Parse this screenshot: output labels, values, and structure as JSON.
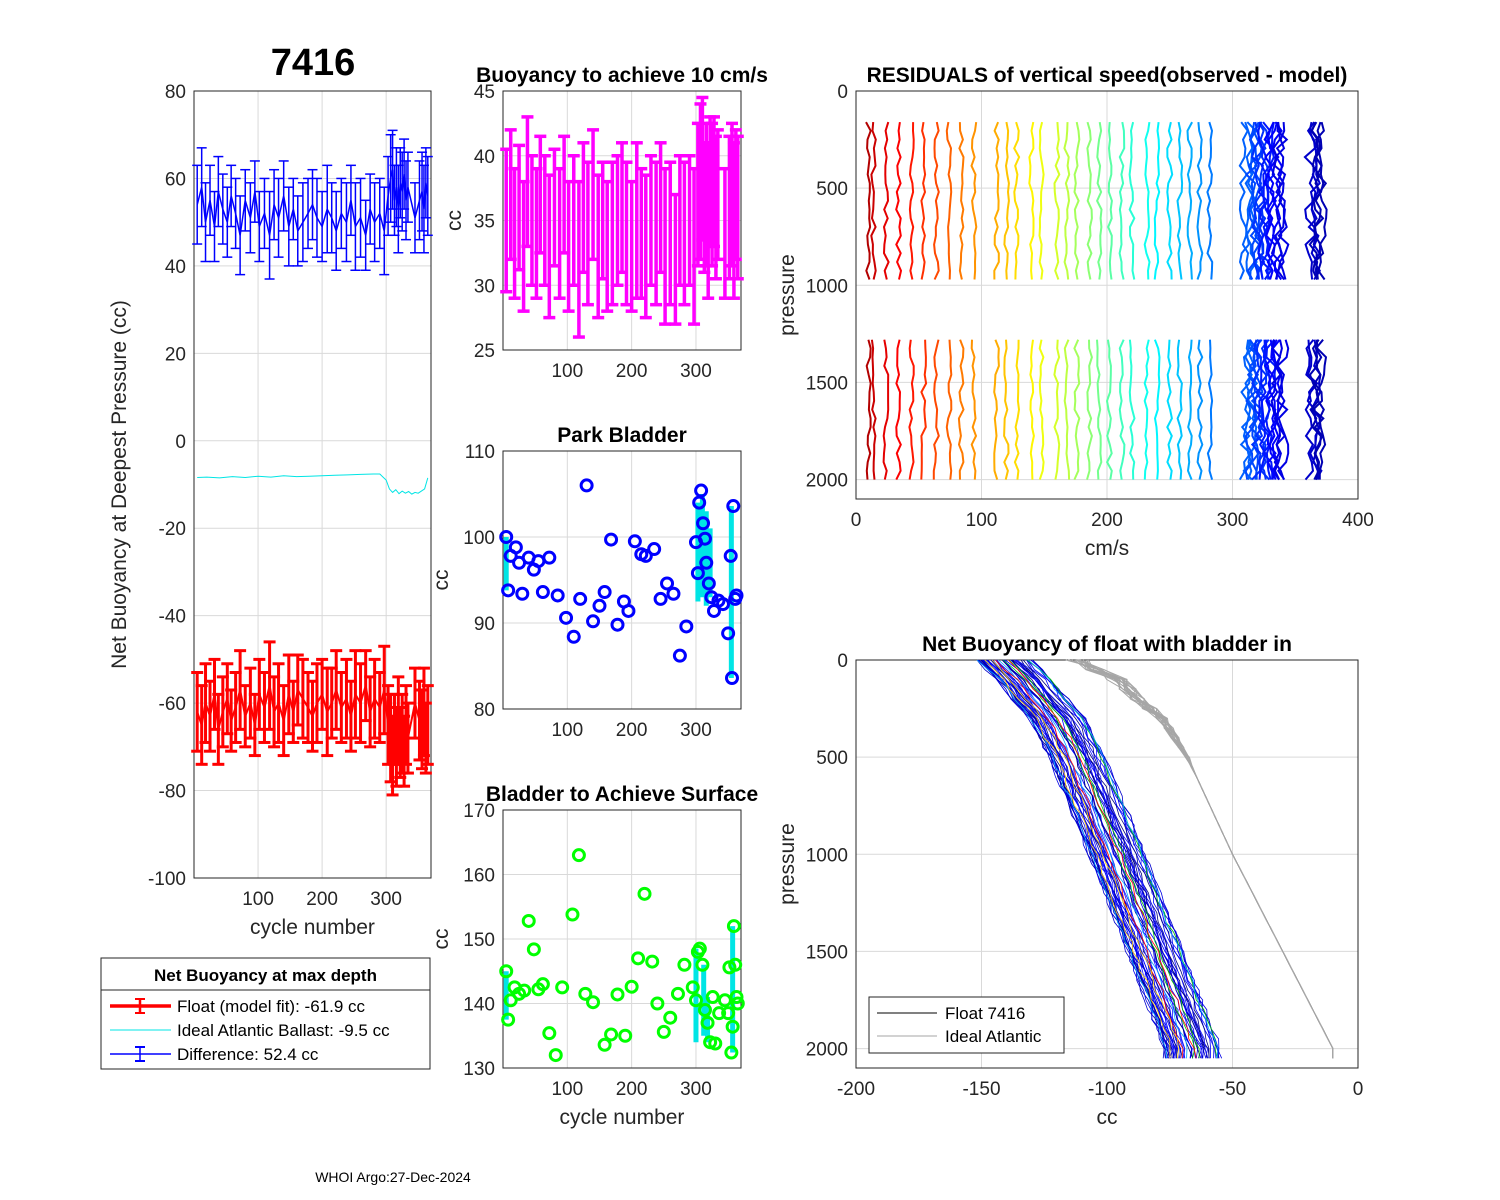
{
  "figure": {
    "main_title": "7416",
    "footer": "WHOI Argo:27-Dec-2024"
  },
  "chart_data": [
    {
      "id": "net_buoyancy_deepest",
      "type": "line",
      "title": "7416",
      "xlabel": "cycle number",
      "ylabel": "Net Buoyancy at Deepest Pressure (cc)",
      "xlim": [
        0,
        370
      ],
      "ylim": [
        -100,
        80
      ],
      "xticks": [
        100,
        200,
        300
      ],
      "yticks": [
        -100,
        -80,
        -60,
        -40,
        -20,
        0,
        20,
        40,
        60,
        80
      ],
      "grid": true,
      "series": [
        {
          "name": "Float (model fit)",
          "color": "#ff0000",
          "x": [
            5,
            12,
            18,
            25,
            32,
            38,
            45,
            52,
            58,
            65,
            72,
            80,
            88,
            95,
            102,
            110,
            118,
            125,
            132,
            140,
            148,
            155,
            162,
            170,
            178,
            185,
            192,
            200,
            208,
            215,
            222,
            230,
            238,
            245,
            252,
            260,
            268,
            275,
            282,
            290,
            297,
            303,
            307,
            310,
            313,
            316,
            319,
            322,
            325,
            328,
            331,
            334,
            345,
            352,
            356,
            359,
            362,
            365
          ],
          "values": [
            -62,
            -65,
            -60,
            -63,
            -58,
            -66,
            -62,
            -59,
            -64,
            -61,
            -57,
            -63,
            -60,
            -65,
            -58,
            -61,
            -56,
            -62,
            -60,
            -64,
            -58,
            -62,
            -57,
            -59,
            -61,
            -63,
            -60,
            -58,
            -62,
            -60,
            -57,
            -61,
            -59,
            -63,
            -58,
            -60,
            -56,
            -62,
            -59,
            -61,
            -57,
            -65,
            -68,
            -72,
            -66,
            -70,
            -64,
            -69,
            -67,
            -71,
            -65,
            -68,
            -60,
            -64,
            -66,
            -62,
            -68,
            -65
          ],
          "errors": [
            9,
            9,
            9,
            8,
            8,
            8,
            8,
            8,
            7,
            8,
            9,
            7,
            8,
            7,
            8,
            8,
            10,
            8,
            9,
            8,
            9,
            7,
            8,
            9,
            8,
            8,
            9,
            8,
            10,
            8,
            9,
            8,
            9,
            8,
            10,
            9,
            8,
            8,
            9,
            8,
            10,
            9,
            10,
            9,
            8,
            9,
            10,
            8,
            9,
            8,
            9,
            8,
            8,
            9,
            9,
            10,
            8,
            9
          ]
        },
        {
          "name": "Ideal Atlantic Ballast",
          "color": "#00e5e5",
          "x": [
            5,
            20,
            40,
            60,
            80,
            100,
            120,
            140,
            160,
            180,
            200,
            220,
            240,
            260,
            280,
            290,
            300,
            305,
            310,
            315,
            320,
            325,
            330,
            335,
            340,
            345,
            350,
            355,
            360,
            365
          ],
          "values": [
            -8.4,
            -8.3,
            -8.5,
            -8.2,
            -8.4,
            -8.1,
            -8.3,
            -8.0,
            -8.2,
            -8.1,
            -8.0,
            -7.9,
            -7.8,
            -7.7,
            -7.6,
            -7.6,
            -9.0,
            -11.0,
            -11.8,
            -11.2,
            -12.1,
            -11.5,
            -12.0,
            -11.6,
            -12.2,
            -11.8,
            -12.0,
            -11.5,
            -11.0,
            -8.5
          ]
        },
        {
          "name": "Difference",
          "color": "#0000ff",
          "x": [
            5,
            12,
            18,
            25,
            32,
            38,
            45,
            52,
            58,
            65,
            72,
            80,
            88,
            95,
            102,
            110,
            118,
            125,
            132,
            140,
            148,
            155,
            162,
            170,
            178,
            185,
            192,
            200,
            208,
            215,
            222,
            230,
            238,
            245,
            252,
            260,
            268,
            275,
            282,
            290,
            297,
            303,
            307,
            310,
            313,
            316,
            319,
            322,
            325,
            328,
            331,
            334,
            345,
            352,
            356,
            359,
            362,
            365
          ],
          "values": [
            54,
            58,
            50,
            55,
            49,
            57,
            53,
            50,
            56,
            52,
            47,
            55,
            51,
            57,
            49,
            52,
            47,
            54,
            51,
            56,
            49,
            53,
            48,
            50,
            52,
            54,
            51,
            49,
            53,
            51,
            48,
            52,
            50,
            55,
            49,
            51,
            47,
            53,
            50,
            52,
            48,
            56,
            60,
            62,
            55,
            58,
            53,
            59,
            57,
            61,
            55,
            58,
            51,
            55,
            57,
            53,
            59,
            56
          ],
          "errors": [
            9,
            9,
            9,
            8,
            8,
            8,
            8,
            8,
            7,
            8,
            9,
            7,
            8,
            7,
            8,
            8,
            10,
            8,
            9,
            8,
            9,
            7,
            8,
            9,
            8,
            8,
            9,
            8,
            10,
            8,
            9,
            8,
            9,
            8,
            10,
            9,
            8,
            8,
            9,
            8,
            10,
            9,
            10,
            9,
            8,
            9,
            10,
            8,
            9,
            8,
            9,
            8,
            8,
            9,
            9,
            10,
            8,
            9
          ]
        }
      ],
      "legend": {
        "title": "Net Buoyancy at max depth",
        "position": "below",
        "entries": [
          "Float (model fit): -61.9 cc",
          "Ideal Atlantic Ballast:  -9.5 cc",
          "Difference:  52.4 cc"
        ]
      }
    },
    {
      "id": "buoyancy_10cms",
      "type": "errorbar",
      "title": "Buoyancy to achieve 10 cm/s",
      "xlabel": "",
      "ylabel": "cc",
      "xlim": [
        0,
        370
      ],
      "ylim": [
        25,
        45
      ],
      "xticks": [
        100,
        200,
        300
      ],
      "yticks": [
        25,
        30,
        35,
        40,
        45
      ],
      "grid": true,
      "color": "#ff00ff",
      "x": [
        5,
        12,
        18,
        25,
        32,
        38,
        45,
        52,
        58,
        65,
        72,
        80,
        88,
        95,
        102,
        110,
        118,
        125,
        132,
        140,
        148,
        155,
        162,
        170,
        178,
        185,
        192,
        200,
        208,
        215,
        222,
        230,
        238,
        245,
        252,
        260,
        268,
        275,
        282,
        290,
        297,
        303,
        307,
        310,
        313,
        316,
        319,
        322,
        325,
        328,
        331,
        334,
        345,
        352,
        356,
        359,
        362,
        365
      ],
      "values": [
        35,
        37,
        34,
        36,
        33,
        38,
        35,
        34,
        37,
        35,
        33,
        36,
        34,
        37,
        33,
        35,
        32,
        36,
        34,
        37,
        33,
        35,
        33,
        34,
        35,
        36,
        34,
        33,
        35,
        34,
        33,
        35,
        34,
        36,
        33,
        34,
        32,
        35,
        34,
        35,
        33,
        37,
        38,
        39,
        36,
        37,
        35,
        38,
        37,
        38,
        36,
        37,
        34,
        36,
        37,
        35,
        37,
        36
      ],
      "errors": [
        5.5,
        5,
        5,
        4.8,
        5,
        5,
        5,
        5,
        4.5,
        5,
        5.5,
        4.5,
        5,
        4.5,
        5,
        5,
        6,
        5,
        5.5,
        5,
        5.5,
        4.5,
        5,
        5.5,
        5,
        5,
        5.5,
        5,
        6,
        5,
        5.5,
        5,
        5.5,
        5,
        6,
        5.5,
        5,
        5,
        5.5,
        5,
        6,
        5.5,
        6,
        5.5,
        5,
        5.5,
        6,
        5,
        5.5,
        5,
        5.5,
        5,
        5,
        5.5,
        5.5,
        6,
        5,
        5.5
      ]
    },
    {
      "id": "park_bladder",
      "type": "scatter",
      "title": "Park Bladder",
      "xlabel": "",
      "ylabel": "cc",
      "xlim": [
        0,
        370
      ],
      "ylim": [
        80,
        110
      ],
      "xticks": [
        100,
        200,
        300
      ],
      "yticks": [
        80,
        90,
        100,
        110
      ],
      "grid": true,
      "color": "#0000ff",
      "x": [
        5,
        8,
        12,
        20,
        25,
        30,
        40,
        48,
        55,
        62,
        72,
        85,
        98,
        110,
        120,
        130,
        140,
        150,
        158,
        168,
        178,
        188,
        195,
        205,
        215,
        222,
        235,
        245,
        255,
        265,
        275,
        285,
        300,
        303,
        305,
        308,
        311,
        314,
        316,
        320,
        324,
        328,
        335,
        342,
        350,
        354,
        356,
        358,
        361,
        363
      ],
      "values": [
        100,
        93.8,
        97.8,
        98.8,
        97.0,
        93.4,
        97.6,
        96.2,
        97.2,
        93.6,
        97.6,
        93.2,
        90.6,
        88.4,
        92.8,
        106.0,
        90.2,
        92.0,
        93.6,
        99.7,
        89.8,
        92.5,
        91.4,
        99.5,
        98.0,
        97.8,
        98.6,
        92.8,
        94.6,
        93.4,
        86.2,
        89.6,
        99.4,
        95.8,
        104.0,
        105.4,
        101.6,
        99.8,
        97.0,
        94.6,
        93.0,
        91.4,
        92.6,
        92.2,
        88.8,
        97.8,
        83.6,
        103.6,
        92.8,
        93.2
      ],
      "bars": [
        [
          5,
          93.8,
          100
        ],
        [
          303,
          92.5,
          104
        ],
        [
          310,
          93,
          105
        ],
        [
          316,
          92,
          103
        ],
        [
          322,
          93,
          101
        ],
        [
          355,
          83.6,
          103.6
        ]
      ]
    },
    {
      "id": "bladder_surface",
      "type": "scatter",
      "title": "Bladder to Achieve Surface",
      "xlabel": "cycle number",
      "ylabel": "cc",
      "xlim": [
        0,
        370
      ],
      "ylim": [
        130,
        170
      ],
      "xticks": [
        100,
        200,
        300
      ],
      "yticks": [
        130,
        140,
        150,
        160,
        170
      ],
      "grid": true,
      "color": "#00ff00",
      "x": [
        5,
        8,
        12,
        18,
        25,
        33,
        40,
        48,
        55,
        62,
        72,
        82,
        92,
        108,
        118,
        128,
        140,
        158,
        168,
        178,
        190,
        200,
        210,
        220,
        232,
        240,
        250,
        260,
        272,
        282,
        295,
        300,
        303,
        306,
        310,
        314,
        318,
        322,
        326,
        330,
        336,
        345,
        350,
        352,
        355,
        357,
        359,
        361,
        363,
        365
      ],
      "values": [
        145,
        137.5,
        140.5,
        142.5,
        141.5,
        142,
        152.8,
        148.4,
        142.2,
        143,
        135.4,
        132,
        142.5,
        153.8,
        163,
        141.5,
        140.2,
        133.6,
        135.2,
        141.4,
        135,
        142.6,
        147,
        157,
        146.5,
        140,
        135.6,
        137.8,
        141.5,
        146,
        142.5,
        140.5,
        148,
        148.5,
        146,
        139,
        137,
        134,
        141,
        133.8,
        138.5,
        140.5,
        138.5,
        145.6,
        132.4,
        136.4,
        152,
        146,
        141,
        140
      ],
      "bars": [
        [
          5,
          137.5,
          145
        ],
        [
          300,
          134,
          148.5
        ],
        [
          312,
          135,
          146
        ],
        [
          318,
          134,
          141
        ],
        [
          357,
          132.4,
          152
        ]
      ]
    },
    {
      "id": "residuals",
      "type": "line",
      "title": "RESIDUALS of vertical speed(observed - model)",
      "xlabel": "cm/s",
      "ylabel": "pressure",
      "xlim": [
        0,
        400
      ],
      "ylim": [
        2100,
        0
      ],
      "xticks": [
        0,
        100,
        200,
        300,
        400
      ],
      "yticks": [
        0,
        500,
        1000,
        1500,
        2000
      ],
      "grid": true,
      "profile_offsets": [
        10,
        14,
        24,
        34,
        44,
        54,
        64,
        74,
        84,
        94,
        112,
        120,
        128,
        140,
        148,
        160,
        168,
        176,
        186,
        194,
        202,
        212,
        220,
        232,
        240,
        250,
        258,
        266,
        274,
        282,
        310,
        315,
        320,
        325,
        330,
        335,
        362,
        366
      ],
      "top_segment_pressure": [
        160,
        1010
      ],
      "bottom_segment_pressure": [
        1280,
        2010
      ],
      "colormap": "jet"
    },
    {
      "id": "net_buoyancy_profile",
      "type": "line",
      "title": "Net Buoyancy of float with bladder in",
      "xlabel": "cc",
      "ylabel": "pressure",
      "xlim": [
        -200,
        0
      ],
      "ylim": [
        2100,
        0
      ],
      "xticks": [
        -200,
        -150,
        -100,
        -50,
        0
      ],
      "yticks": [
        0,
        500,
        1000,
        1500,
        2000
      ],
      "grid": true,
      "float_profile": {
        "pressure": [
          0,
          100,
          200,
          300,
          500,
          1000,
          1500,
          2000
        ],
        "cc": [
          -141,
          -133,
          -127,
          -120,
          -112,
          -96,
          -81,
          -66
        ]
      },
      "ideal_profile": {
        "pressure": [
          0,
          100,
          200,
          300,
          500,
          1000,
          1500,
          2000
        ],
        "cc": [
          -112,
          -96,
          -88,
          -78,
          -68,
          -50,
          -30,
          -10
        ]
      },
      "legend": {
        "position": "bottom-left",
        "entries": [
          "Float 7416",
          "Ideal Atlantic"
        ]
      }
    }
  ]
}
